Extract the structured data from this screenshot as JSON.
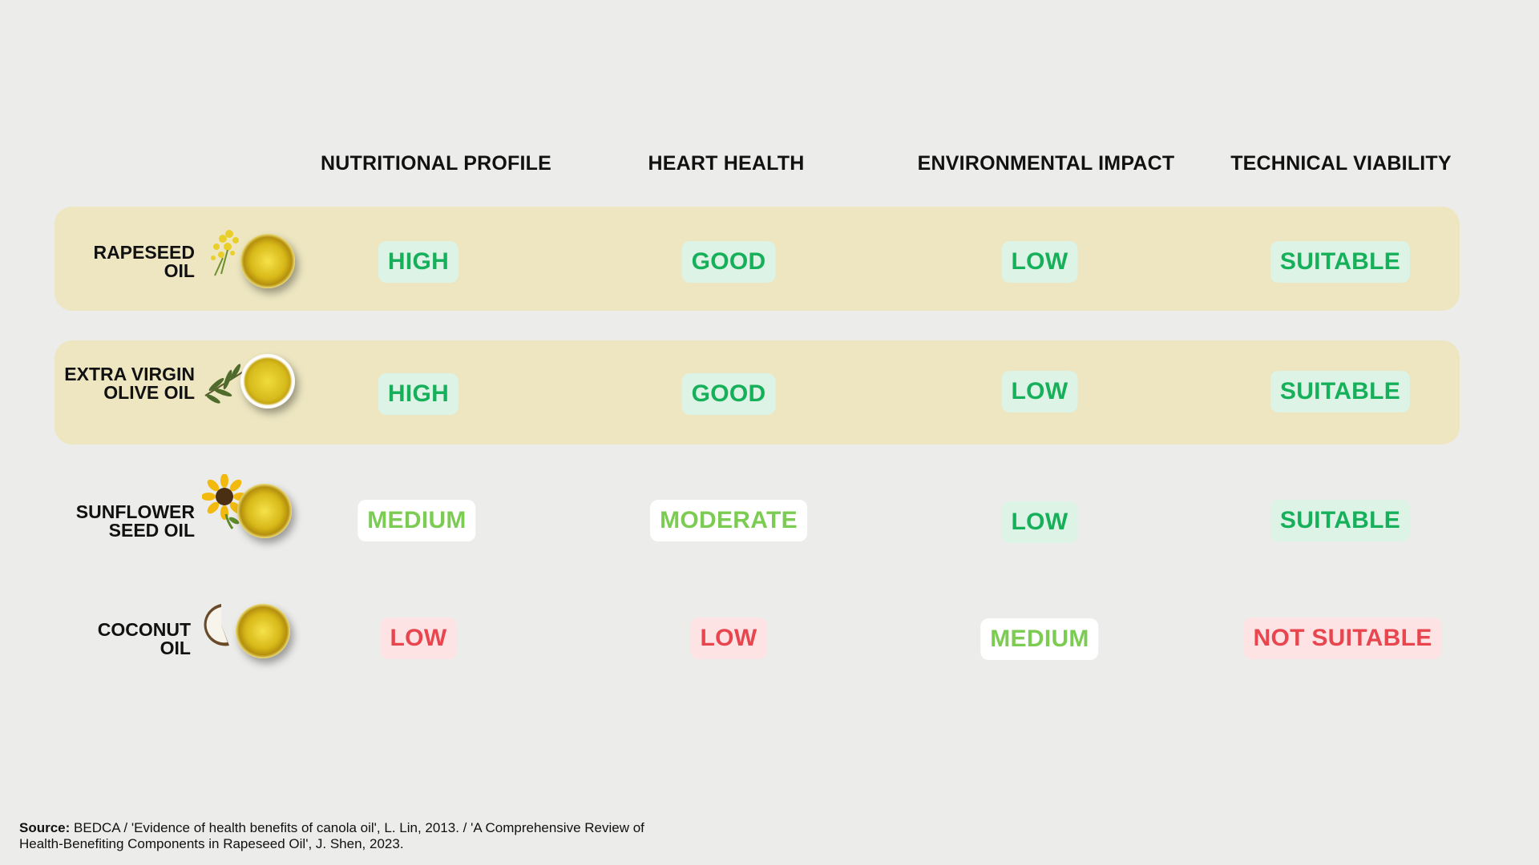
{
  "columns": [
    "NUTRITIONAL PROFILE",
    "HEART HEALTH",
    "ENVIRONMENTAL IMPACT",
    "TECHNICAL VIABILITY"
  ],
  "rows": [
    {
      "name_line1": "RAPESEED",
      "name_line2": "OIL",
      "icon": "rapeseed-flower-icon",
      "values": [
        "HIGH",
        "GOOD",
        "LOW",
        "SUITABLE"
      ]
    },
    {
      "name_line1": "EXTRA VIRGIN",
      "name_line2": "OLIVE OIL",
      "icon": "olive-branch-icon",
      "values": [
        "HIGH",
        "GOOD",
        "LOW",
        "SUITABLE"
      ]
    },
    {
      "name_line1": "SUNFLOWER",
      "name_line2": "SEED OIL",
      "icon": "sunflower-icon",
      "values": [
        "MEDIUM",
        "MODERATE",
        "LOW",
        "SUITABLE"
      ]
    },
    {
      "name_line1": "COCONUT",
      "name_line2": "OIL",
      "icon": "coconut-icon",
      "values": [
        "LOW",
        "LOW",
        "MEDIUM",
        "NOT SUITABLE"
      ]
    }
  ],
  "colors": {
    "row_highlight": "#ede6c1",
    "positive_text": "#17b05a",
    "positive_bg": "#dcf3e6",
    "medium_text": "#7ccc53",
    "medium_bg": "#ffffff",
    "negative_text": "#e8454f",
    "negative_bg": "#fde3e3"
  },
  "source": {
    "label": "Source:",
    "text": "BEDCA / 'Evidence of health benefits of canola oil', L. Lin, 2013. / 'A Comprehensive Review of Health-Benefiting Components in Rapeseed Oil', J. Shen, 2023."
  }
}
